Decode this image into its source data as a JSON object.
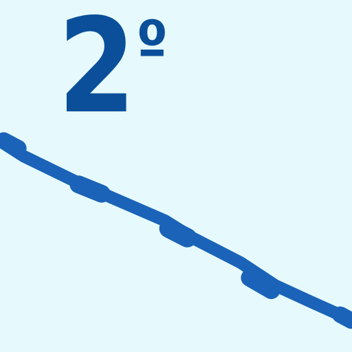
{
  "slope": {
    "value": "2",
    "unit": "º"
  },
  "colors": {
    "background": "#e6fafd",
    "stroke": "#0b4f9a",
    "slope_line": "#1b63b8"
  }
}
